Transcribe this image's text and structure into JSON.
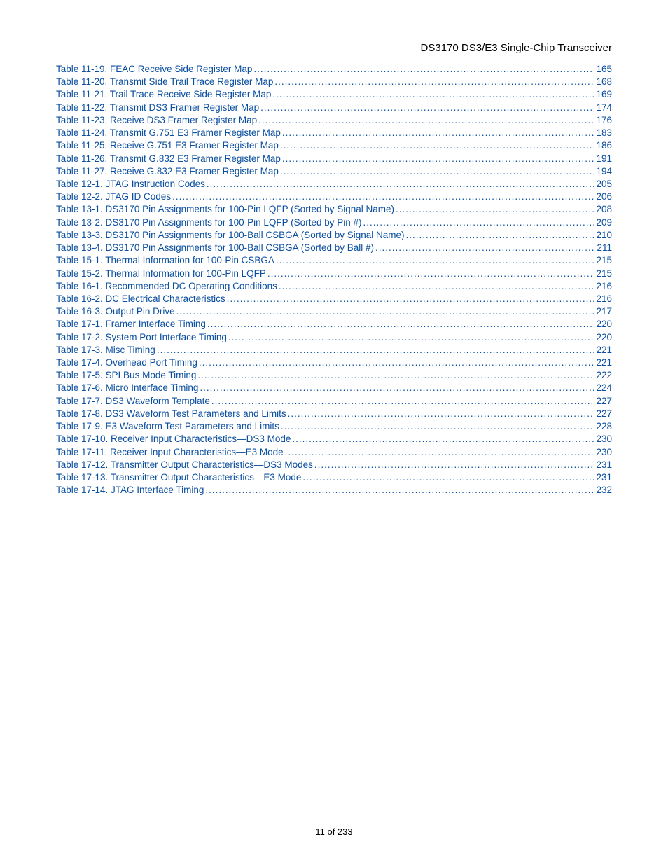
{
  "header": {
    "title": "DS3170 DS3/E3 Single-Chip Transceiver"
  },
  "link_color": "#0b4fa0",
  "toc": {
    "entries": [
      {
        "label": "Table 11-19. FEAC Receive Side Register Map",
        "page": "165"
      },
      {
        "label": "Table 11-20. Transmit Side Trail Trace Register Map",
        "page": "168"
      },
      {
        "label": "Table 11-21. Trail Trace Receive Side Register Map",
        "page": "169"
      },
      {
        "label": "Table 11-22. Transmit DS3 Framer Register Map",
        "page": "174"
      },
      {
        "label": "Table 11-23. Receive DS3 Framer Register Map",
        "page": "176"
      },
      {
        "label": "Table 11-24. Transmit G.751 E3 Framer Register Map",
        "page": "183"
      },
      {
        "label": "Table 11-25. Receive G.751 E3 Framer Register Map",
        "page": "186"
      },
      {
        "label": "Table 11-26. Transmit G.832 E3 Framer Register Map",
        "page": "191"
      },
      {
        "label": "Table 11-27. Receive G.832 E3 Framer Register Map",
        "page": "194"
      },
      {
        "label": "Table 12-1. JTAG Instruction Codes",
        "page": "205"
      },
      {
        "label": "Table 12-2. JTAG ID Codes",
        "page": "206"
      },
      {
        "label": "Table 13-1. DS3170 Pin Assignments for 100-Pin LQFP (Sorted by Signal Name)",
        "page": "208"
      },
      {
        "label": "Table 13-2. DS3170 Pin Assignments for 100-Pin LQFP (Sorted by Pin #)",
        "page": "209"
      },
      {
        "label": "Table 13-3. DS3170 Pin Assignments for 100-Ball CSBGA (Sorted by Signal Name)",
        "page": "210"
      },
      {
        "label": "Table 13-4. DS3170 Pin Assignments for 100-Ball CSBGA (Sorted by Ball #)",
        "page": "211"
      },
      {
        "label": "Table 15-1. Thermal Information for 100-Pin CSBGA",
        "page": "215"
      },
      {
        "label": "Table 15-2. Thermal Information for 100-Pin LQFP",
        "page": "215"
      },
      {
        "label": "Table 16-1. Recommended DC Operating Conditions",
        "page": "216"
      },
      {
        "label": "Table 16-2. DC Electrical Characteristics",
        "page": "216"
      },
      {
        "label": "Table 16-3. Output Pin Drive",
        "page": "217"
      },
      {
        "label": "Table 17-1. Framer Interface Timing",
        "page": "220"
      },
      {
        "label": "Table 17-2. System Port Interface Timing",
        "page": "220"
      },
      {
        "label": "Table 17-3. Misc Timing",
        "page": "221"
      },
      {
        "label": "Table 17-4. Overhead Port Timing",
        "page": "221"
      },
      {
        "label": "Table 17-5. SPI Bus Mode Timing",
        "page": "222"
      },
      {
        "label": "Table 17-6. Micro Interface Timing",
        "page": "224"
      },
      {
        "label": "Table 17-7. DS3 Waveform Template",
        "page": "227"
      },
      {
        "label": "Table 17-8. DS3 Waveform Test Parameters and Limits",
        "page": "227"
      },
      {
        "label": "Table 17-9. E3 Waveform Test Parameters and Limits",
        "page": "228"
      },
      {
        "label": "Table 17-10. Receiver Input Characteristics—DS3 Mode",
        "page": "230"
      },
      {
        "label": "Table 17-11. Receiver Input Characteristics—E3 Mode",
        "page": "230"
      },
      {
        "label": "Table 17-12. Transmitter Output Characteristics—DS3 Modes",
        "page": "231"
      },
      {
        "label": "Table 17-13. Transmitter Output Characteristics—E3 Mode",
        "page": "231"
      },
      {
        "label": "Table 17-14. JTAG Interface Timing",
        "page": "232"
      }
    ]
  },
  "footer": {
    "text": "11 of 233"
  }
}
